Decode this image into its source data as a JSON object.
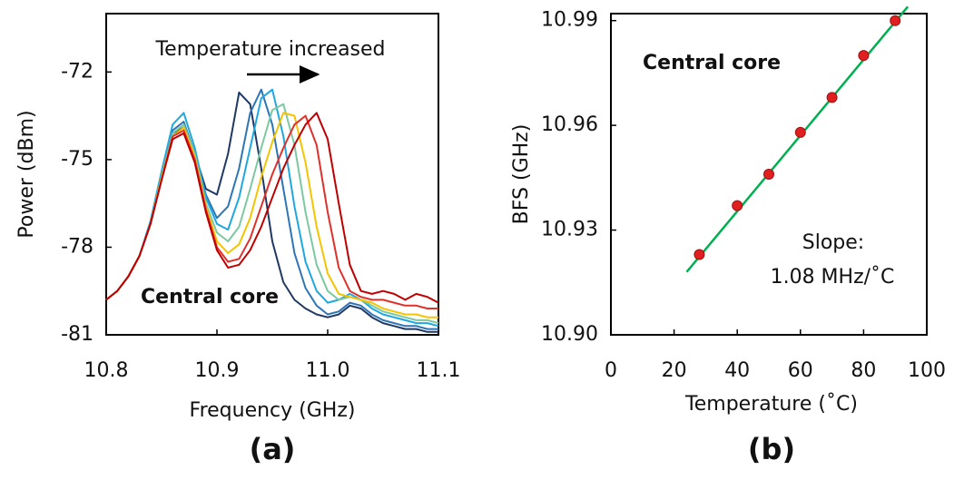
{
  "chart_data": [
    {
      "type": "line",
      "label": "(a)",
      "xlabel": "Frequency (GHz)",
      "ylabel": "Power (dBm)",
      "annotations": {
        "arrow_text": "Temperature increased",
        "core": "Central core"
      },
      "xlim": [
        10.8,
        11.1
      ],
      "xticks": [
        10.8,
        10.9,
        {
          "value": 11,
          "label": "11.0"
        },
        11.1
      ],
      "ylim": [
        -81,
        -70
      ],
      "yticks": [
        -81,
        -78,
        -75,
        -72
      ],
      "x": [
        10.8,
        10.81,
        10.82,
        10.83,
        10.84,
        10.85,
        10.86,
        10.87,
        10.88,
        10.89,
        10.9,
        10.91,
        10.92,
        10.93,
        10.94,
        10.95,
        10.96,
        10.97,
        10.98,
        10.99,
        11.0,
        11.01,
        11.02,
        11.03,
        11.04,
        11.05,
        11.06,
        11.07,
        11.08,
        11.09,
        11.1
      ],
      "series": [
        {
          "color": "#1f3864",
          "values": [
            -79.8,
            -79.5,
            -79.0,
            -78.3,
            -77.2,
            -75.6,
            -74.1,
            -73.9,
            -74.8,
            -76.0,
            -76.2,
            -74.8,
            -72.7,
            -73.1,
            -75.3,
            -77.8,
            -79.2,
            -79.8,
            -80.1,
            -80.3,
            -80.4,
            -80.3,
            -80.0,
            -80.1,
            -80.4,
            -80.6,
            -80.7,
            -80.8,
            -80.8,
            -80.9,
            -80.9
          ]
        },
        {
          "color": "#2e75b6",
          "values": [
            -79.8,
            -79.5,
            -79.0,
            -78.3,
            -77.2,
            -75.6,
            -74.0,
            -73.7,
            -74.8,
            -76.2,
            -77.0,
            -76.6,
            -75.3,
            -73.4,
            -72.6,
            -73.8,
            -76.0,
            -78.2,
            -79.4,
            -80.0,
            -80.3,
            -80.2,
            -79.9,
            -80.0,
            -80.3,
            -80.5,
            -80.6,
            -80.7,
            -80.7,
            -80.8,
            -80.8
          ]
        },
        {
          "color": "#1fa8e0",
          "values": [
            -79.8,
            -79.5,
            -79.0,
            -78.3,
            -77.1,
            -75.4,
            -73.8,
            -73.4,
            -74.6,
            -76.3,
            -77.2,
            -77.4,
            -76.3,
            -74.6,
            -72.9,
            -72.6,
            -74.2,
            -76.6,
            -78.5,
            -79.5,
            -79.9,
            -79.8,
            -79.6,
            -79.8,
            -80.1,
            -80.3,
            -80.4,
            -80.5,
            -80.6,
            -80.6,
            -80.7
          ]
        },
        {
          "color": "#7cc8a0",
          "values": [
            -79.8,
            -79.5,
            -79.0,
            -78.3,
            -77.2,
            -75.6,
            -74.1,
            -73.8,
            -74.8,
            -76.5,
            -77.5,
            -77.8,
            -77.3,
            -76.0,
            -74.6,
            -73.3,
            -73.1,
            -74.5,
            -76.8,
            -78.6,
            -79.5,
            -79.8,
            -79.7,
            -79.8,
            -80.0,
            -80.2,
            -80.3,
            -80.4,
            -80.5,
            -80.5,
            -80.6
          ]
        },
        {
          "color": "#f5c400",
          "values": [
            -79.8,
            -79.5,
            -79.0,
            -78.3,
            -77.2,
            -75.6,
            -74.2,
            -73.9,
            -74.9,
            -76.6,
            -77.8,
            -78.2,
            -77.9,
            -77.0,
            -75.6,
            -74.4,
            -73.4,
            -73.5,
            -75.1,
            -77.3,
            -78.9,
            -79.6,
            -79.7,
            -79.8,
            -79.9,
            -80.1,
            -80.2,
            -80.3,
            -80.3,
            -80.4,
            -80.4
          ]
        },
        {
          "color": "#e0302a",
          "values": [
            -79.8,
            -79.5,
            -79.0,
            -78.3,
            -77.2,
            -75.7,
            -74.2,
            -74.0,
            -75.0,
            -76.7,
            -78.0,
            -78.5,
            -78.4,
            -77.7,
            -76.6,
            -75.5,
            -74.6,
            -73.8,
            -73.5,
            -74.5,
            -76.8,
            -78.7,
            -79.5,
            -79.7,
            -79.8,
            -79.8,
            -79.9,
            -80.0,
            -80.0,
            -80.1,
            -80.1
          ]
        },
        {
          "color": "#c00000",
          "values": [
            -79.8,
            -79.5,
            -79.0,
            -78.3,
            -77.2,
            -75.7,
            -74.3,
            -74.1,
            -75.1,
            -76.8,
            -78.1,
            -78.7,
            -78.6,
            -78.1,
            -77.3,
            -76.3,
            -75.3,
            -74.5,
            -73.8,
            -73.4,
            -74.3,
            -76.5,
            -78.6,
            -79.5,
            -79.6,
            -79.5,
            -79.6,
            -79.8,
            -79.6,
            -79.7,
            -79.9
          ]
        }
      ]
    },
    {
      "type": "scatter",
      "label": "(b)",
      "xlabel": "Temperature (˚C)",
      "ylabel": "BFS (GHz)",
      "annotations": {
        "core": "Central core",
        "slope_title": "Slope:",
        "slope_value": "1.08 MHz/˚C"
      },
      "xlim": [
        0,
        100
      ],
      "xticks": [
        0,
        20,
        40,
        60,
        80,
        100
      ],
      "ylim": [
        10.9,
        10.992
      ],
      "yticks": [
        {
          "value": 10.9,
          "label": "10.90"
        },
        10.93,
        10.96,
        10.99
      ],
      "points": {
        "color": "#e02020",
        "x": [
          28,
          40,
          50,
          60,
          70,
          80,
          90
        ],
        "values": [
          10.923,
          10.937,
          10.946,
          10.958,
          10.968,
          10.98,
          10.99
        ]
      },
      "fit_line": {
        "color": "#00b050",
        "x": [
          24,
          94
        ],
        "values": [
          10.918,
          10.994
        ]
      }
    }
  ]
}
